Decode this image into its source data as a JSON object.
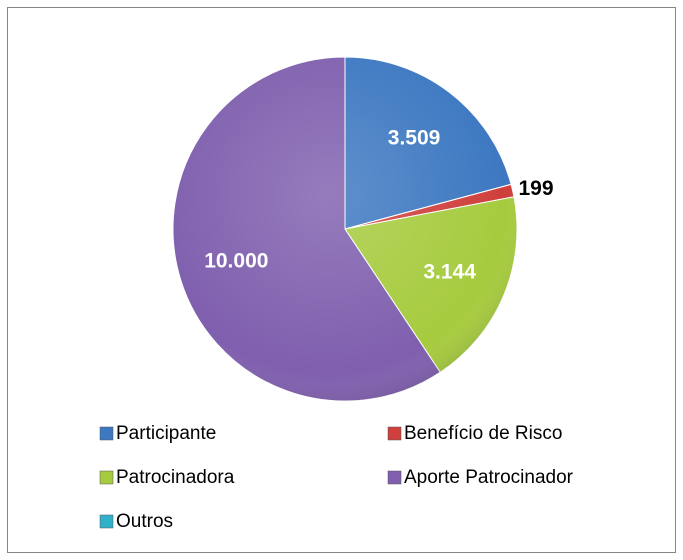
{
  "chart_data": {
    "type": "pie",
    "categories": [
      "Participante",
      "Benefício de Risco",
      "Patrocinadora",
      "Aporte Patrocinador",
      "Outros"
    ],
    "values": [
      3509,
      199,
      3144,
      10000,
      0
    ],
    "value_labels": [
      "3.509",
      "199",
      "3.144",
      "10.000",
      null
    ],
    "colors": [
      "#3d78c1",
      "#cf3f3c",
      "#a6cb3e",
      "#7f5fae",
      "#31b0c9"
    ],
    "legend": "bottom"
  }
}
